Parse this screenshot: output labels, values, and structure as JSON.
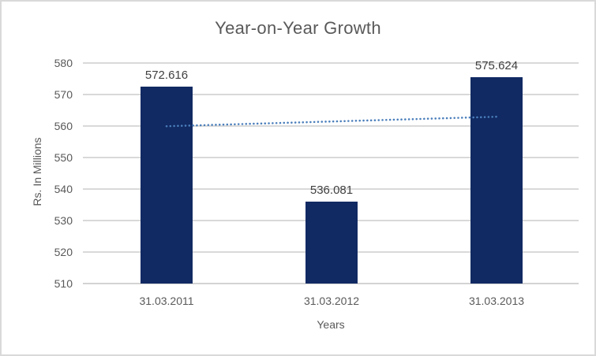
{
  "chart_data": {
    "type": "bar",
    "title": "Year-on-Year Growth",
    "xlabel": "Years",
    "ylabel": "Rs. In Millions",
    "categories": [
      "31.03.2011",
      "31.03.2012",
      "31.03.2013"
    ],
    "values": [
      572.616,
      536.081,
      575.624
    ],
    "value_labels": [
      "572.616",
      "536.081",
      "575.624"
    ],
    "yticks": [
      580,
      570,
      560,
      550,
      540,
      530,
      520,
      510
    ],
    "ylim": [
      510,
      580
    ],
    "grid": true,
    "legend_position": "none",
    "trendline": {
      "type": "linear",
      "style": "dotted",
      "fit_values_at_first_last_category": [
        559.936,
        562.944
      ]
    },
    "colors": {
      "bar_fill": "#112a63",
      "trendline": "#4a7ebb",
      "gridline": "#d9d9d9",
      "axis_line": "#d3d3d3",
      "title_text": "#595959",
      "tick_text": "#595959",
      "data_label_text": "#404040",
      "border": "#d9d9d9",
      "background": "#ffffff"
    }
  }
}
